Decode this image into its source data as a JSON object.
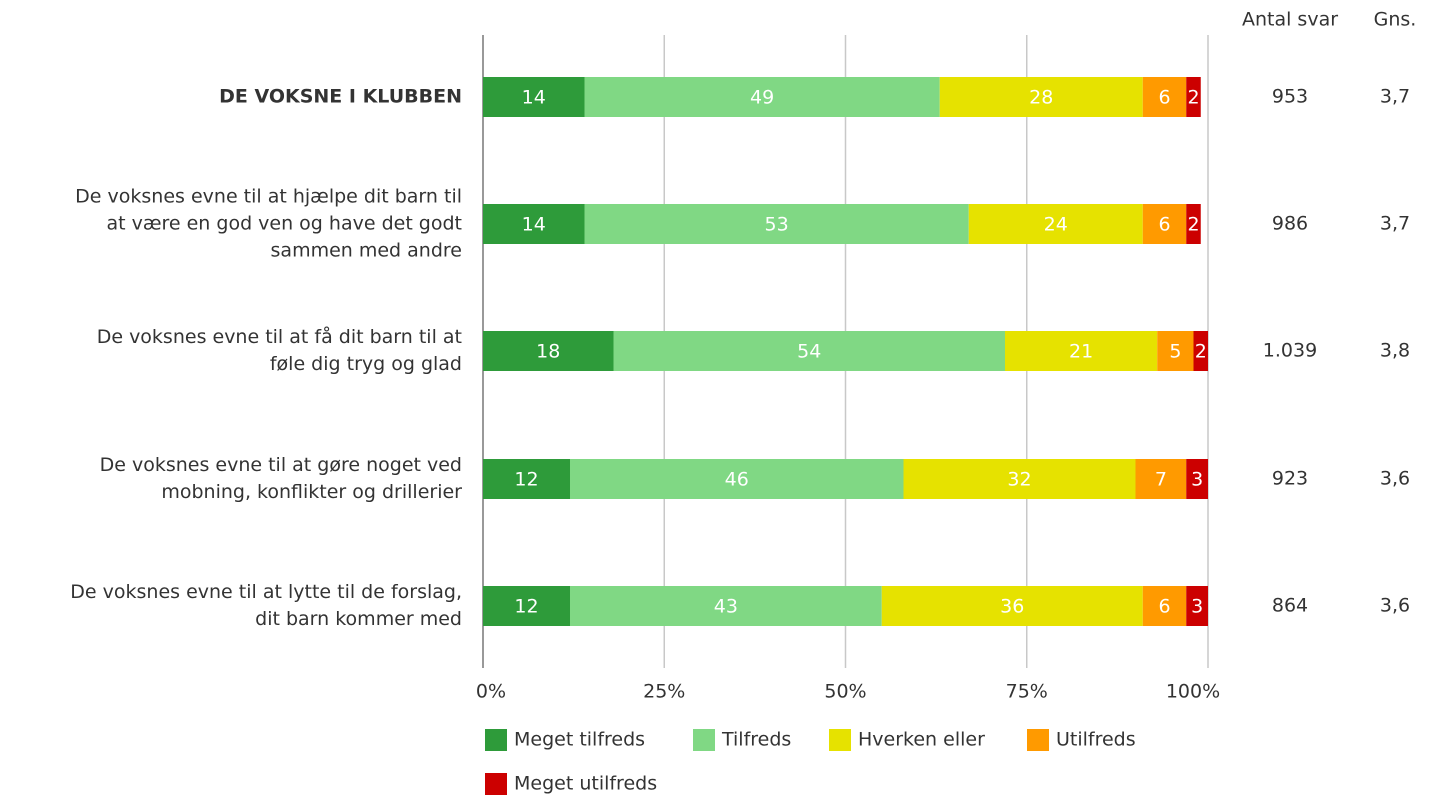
{
  "chart_data": {
    "type": "stacked_bar_h",
    "categories": [
      "DE VOKSNE I KLUBBEN",
      "De voksnes evne til at hjælpe dit barn til\nat være en god ven og have det godt\nsammen med andre",
      "De voksnes evne til at få dit barn til at\nføle dig tryg og glad",
      "De voksnes evne til at gøre noget ved\nmobning, konflikter og drillerier",
      "De voksnes evne til at lytte til de forslag,\ndit barn kommer med"
    ],
    "series": [
      {
        "name": "Meget tilfreds",
        "color": "#2e9b3a",
        "values": [
          14,
          14,
          18,
          12,
          12
        ]
      },
      {
        "name": "Tilfreds",
        "color": "#80d884",
        "values": [
          49,
          53,
          54,
          46,
          43
        ]
      },
      {
        "name": "Hverken eller",
        "color": "#e6e200",
        "values": [
          28,
          24,
          21,
          32,
          36
        ]
      },
      {
        "name": "Utilfreds",
        "color": "#ff9a00",
        "values": [
          6,
          6,
          5,
          7,
          6
        ]
      },
      {
        "name": "Meget utilfreds",
        "color": "#cc0000",
        "values": [
          2,
          2,
          2,
          3,
          3
        ]
      }
    ],
    "xlim": [
      0,
      100
    ],
    "xticks": [
      {
        "value": 0,
        "label": "0%"
      },
      {
        "value": 25,
        "label": "25%"
      },
      {
        "value": 50,
        "label": "50%"
      },
      {
        "value": 75,
        "label": "75%"
      },
      {
        "value": 100,
        "label": "100%"
      }
    ],
    "grid": true,
    "columns": [
      {
        "header": "Antal svar",
        "values": [
          "953",
          "986",
          "1.039",
          "923",
          "864"
        ]
      },
      {
        "header": "Gns.",
        "values": [
          "3,7",
          "3,7",
          "3,8",
          "3,6",
          "3,6"
        ]
      }
    ]
  }
}
